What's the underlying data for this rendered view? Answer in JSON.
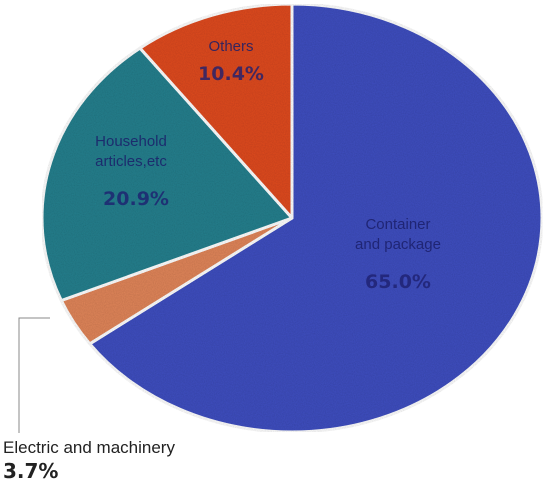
{
  "chart_data": {
    "type": "pie",
    "slices": [
      {
        "label": "Container and package",
        "label_lines": [
          "Container",
          "and package"
        ],
        "value": 65.0,
        "display": "65.0%",
        "color": "#3f50c0"
      },
      {
        "label": "Electric and machinery",
        "label_lines": [
          "Electric and machinery"
        ],
        "value": 3.7,
        "display": "3.7%",
        "color": "#e0855a"
      },
      {
        "label": "Household articles,etc",
        "label_lines": [
          "Household",
          "articles,etc"
        ],
        "value": 20.9,
        "display": "20.9%",
        "color": "#26808e"
      },
      {
        "label": "Others",
        "label_lines": [
          "Others"
        ],
        "value": 10.4,
        "display": "10.4%",
        "color": "#df4c24"
      }
    ]
  }
}
